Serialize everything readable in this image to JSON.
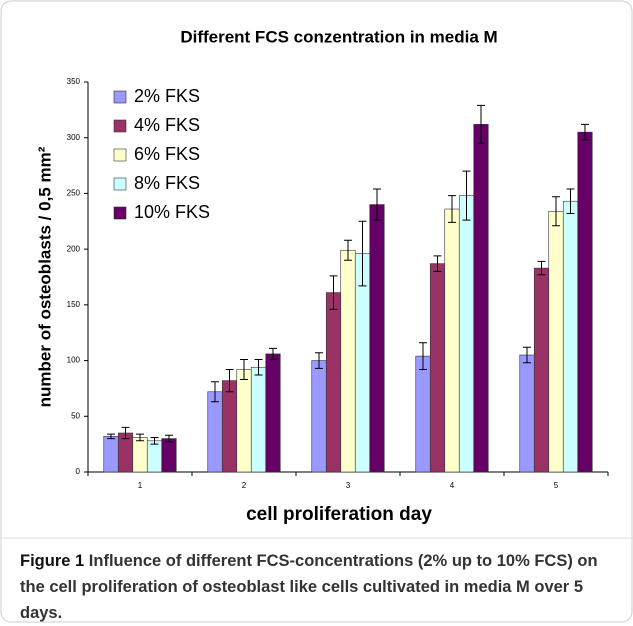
{
  "chart_data": {
    "type": "bar",
    "title": "Different FCS conzentration in media M",
    "x_label": "cell proliferation  day",
    "y_label": "number of osteoblasts / 0,5 mm²",
    "categories": [
      "1",
      "2",
      "3",
      "4",
      "5"
    ],
    "series": [
      {
        "name": "2% FKS",
        "color": "#9999ff",
        "values": [
          32,
          72,
          100,
          104,
          105
        ],
        "errors": [
          2,
          9,
          7,
          12,
          7
        ]
      },
      {
        "name": "4% FKS",
        "color": "#993366",
        "values": [
          35,
          82,
          161,
          187,
          183
        ],
        "errors": [
          5,
          10,
          15,
          7,
          6
        ]
      },
      {
        "name": "6% FKS",
        "color": "#ffffcc",
        "values": [
          31,
          92,
          199,
          236,
          234
        ],
        "errors": [
          3,
          9,
          9,
          12,
          13
        ]
      },
      {
        "name": "8% FKS",
        "color": "#ccffff",
        "values": [
          28,
          94,
          196,
          248,
          243
        ],
        "errors": [
          3,
          7,
          29,
          22,
          11
        ]
      },
      {
        "name": "10% FKS",
        "color": "#660066",
        "values": [
          30,
          106,
          240,
          312,
          305
        ],
        "errors": [
          3,
          5,
          14,
          17,
          7
        ]
      }
    ],
    "ylim": [
      0,
      350
    ],
    "yticks": [
      0,
      50,
      100,
      150,
      200,
      250,
      300,
      350
    ],
    "legend": "upper left"
  },
  "caption": {
    "label": "Figure 1",
    "text": "Influence of different FCS-concentrations (2% up to 10% FCS) on the cell proliferation of osteoblast like cells cultivated in media M over 5 days."
  }
}
